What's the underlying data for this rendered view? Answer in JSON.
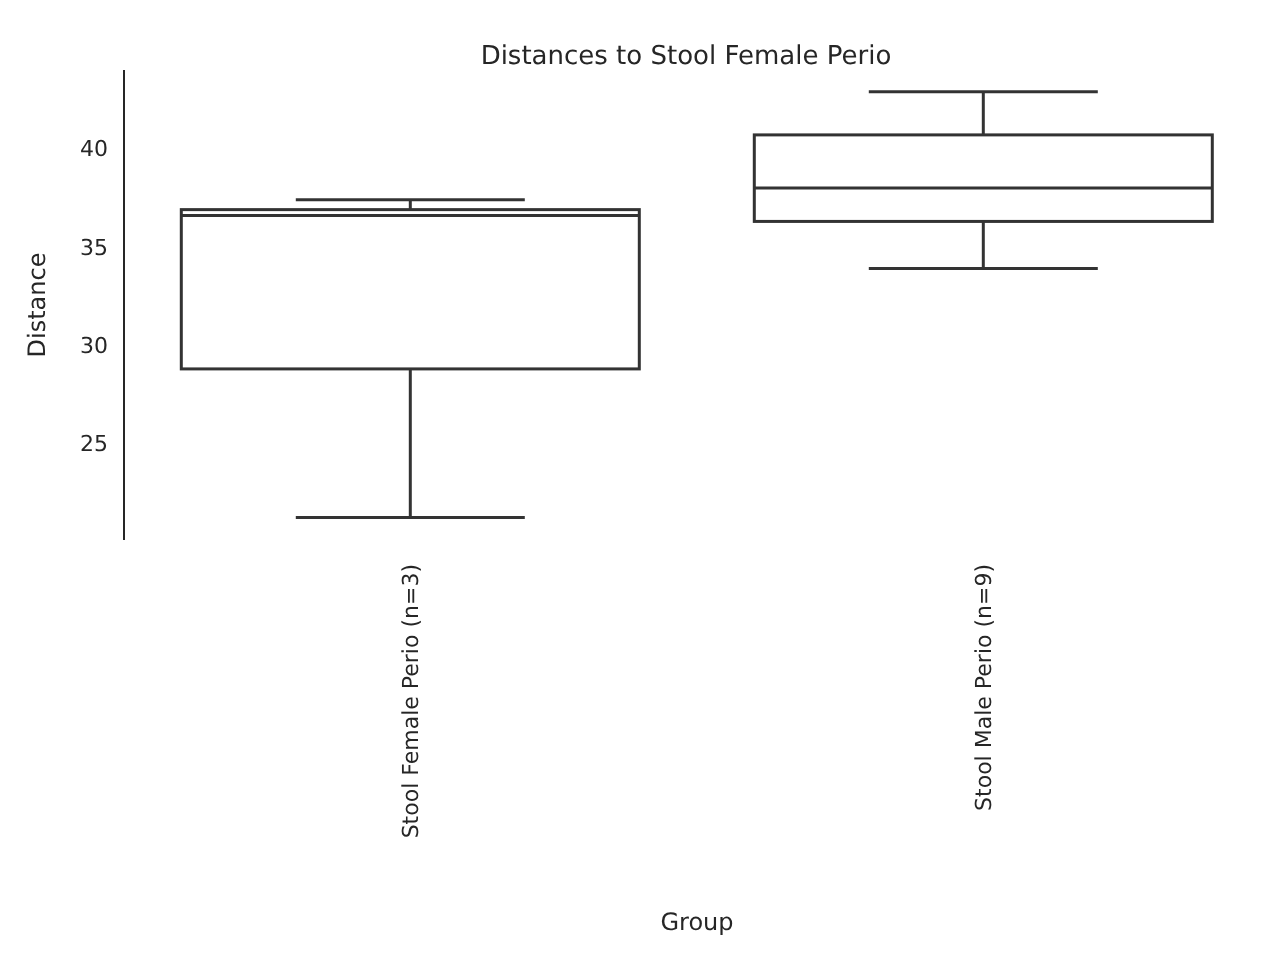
{
  "chart_data": {
    "type": "box",
    "title": "Distances to Stool Female Perio",
    "xlabel": "Group",
    "ylabel": "Distance",
    "categories": [
      "Stool Female Perio (n=3)",
      "Stool Male Perio (n=9)"
    ],
    "boxes": [
      {
        "low": 21.25,
        "q1": 28.8,
        "median": 36.6,
        "q3": 36.9,
        "high": 37.4
      },
      {
        "low": 33.9,
        "q1": 36.3,
        "median": 38.0,
        "q3": 40.7,
        "high": 42.9
      }
    ],
    "color": "#333333",
    "ylim": [
      20.1,
      44
    ],
    "yticks": [
      25,
      30,
      35,
      40
    ],
    "grid": false
  }
}
